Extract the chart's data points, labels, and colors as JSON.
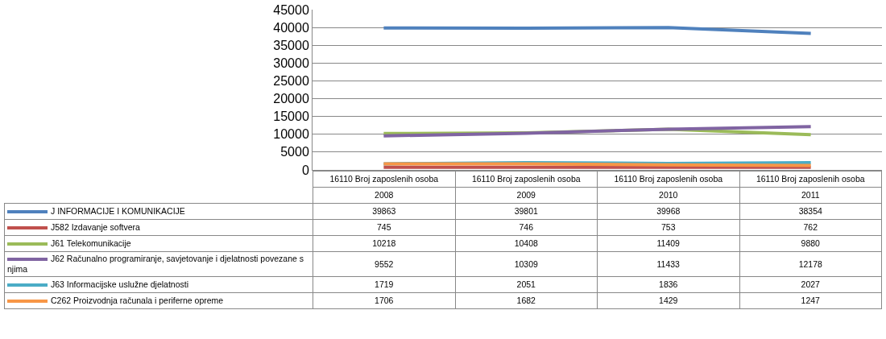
{
  "chart_data": {
    "type": "line",
    "categories": [
      "16110 Broj zaposlenih osoba\n2008",
      "16110 Broj zaposlenih osoba\n2009",
      "16110 Broj zaposlenih osoba\n2010",
      "16110 Broj zaposlenih osoba\n2011"
    ],
    "series": [
      {
        "name": "J INFORMACIJE I KOMUNIKACIJE",
        "color": "#4f81bd",
        "values": [
          39863,
          39801,
          39968,
          38354
        ]
      },
      {
        "name": "J582 Izdavanje softvera",
        "color": "#c0504d",
        "values": [
          745,
          746,
          753,
          762
        ]
      },
      {
        "name": "J61 Telekomunikacije",
        "color": "#9bbb59",
        "values": [
          10218,
          10408,
          11409,
          9880
        ]
      },
      {
        "name": "J62 Računalno programiranje, savjetovanje i djelatnosti povezane s njima",
        "color": "#8064a2",
        "values": [
          9552,
          10309,
          11433,
          12178
        ]
      },
      {
        "name": "J63 Informacijske uslužne djelatnosti",
        "color": "#4bacc6",
        "values": [
          1719,
          2051,
          1836,
          2027
        ]
      },
      {
        "name": "C262 Proizvodnja računala i periferne opreme",
        "color": "#f79646",
        "values": [
          1706,
          1682,
          1429,
          1247
        ]
      }
    ],
    "ylim": [
      0,
      45000
    ],
    "yticks": [
      0,
      5000,
      10000,
      15000,
      20000,
      25000,
      30000,
      35000,
      40000,
      45000
    ],
    "grid": "y",
    "legend": "bottom",
    "marker": "none",
    "line_style": "solid",
    "data_labels": true
  }
}
